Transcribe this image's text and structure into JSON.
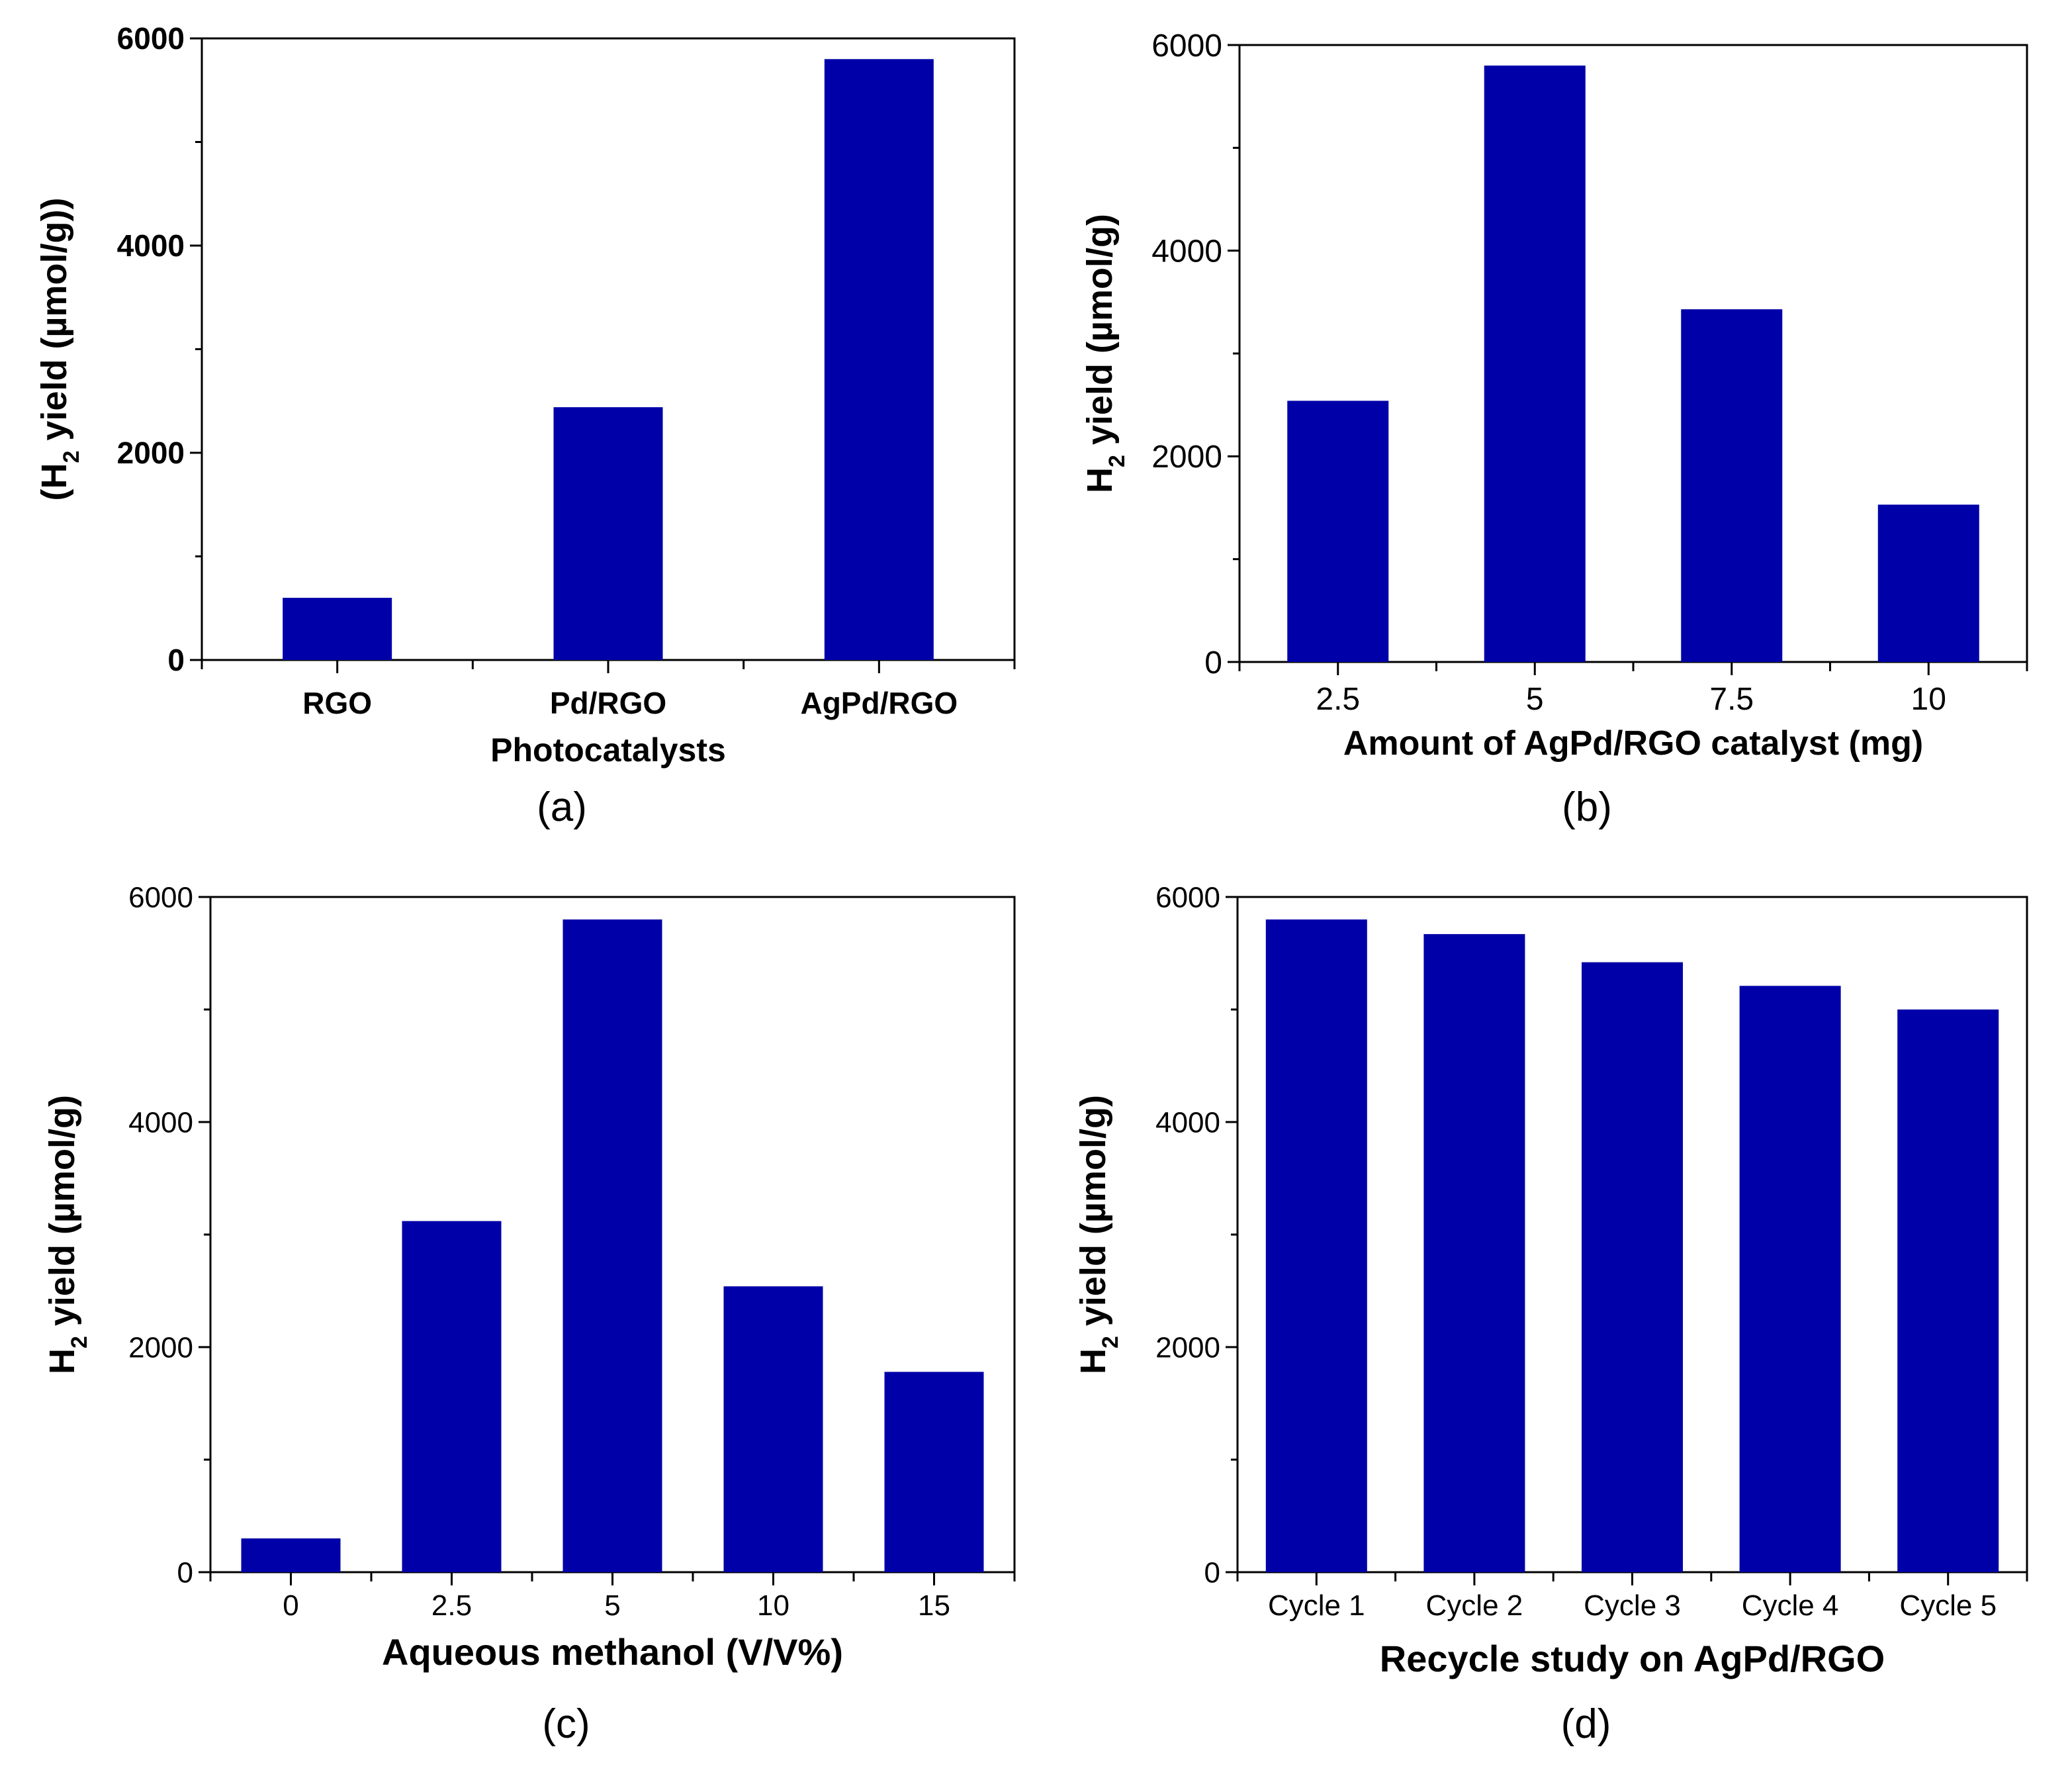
{
  "figure": {
    "panels": [
      "(a)",
      "(b)",
      "(c)",
      "(d)"
    ],
    "bar_color": "#0000A8"
  },
  "chart_data": [
    {
      "id": "a",
      "type": "bar",
      "panel_label": "(a)",
      "categories": [
        "RGO",
        "Pd/RGO",
        "AgPd/RGO"
      ],
      "values": [
        600,
        2440,
        5800
      ],
      "ylim": [
        0,
        6000
      ],
      "yticks": [
        0,
        2000,
        4000,
        6000
      ],
      "ylabel": {
        "prefix": "(H",
        "sub": "2",
        "suffix": " yield (µmol/g))"
      },
      "xlabel": "Photocatalysts",
      "title": "",
      "bold_ticks": true,
      "grid": false
    },
    {
      "id": "b",
      "type": "bar",
      "panel_label": "(b)",
      "categories": [
        "2.5",
        "5",
        "7.5",
        "10"
      ],
      "values": [
        2540,
        5800,
        3430,
        1530
      ],
      "ylim": [
        0,
        6000
      ],
      "yticks": [
        0,
        2000,
        4000,
        6000
      ],
      "ylabel": {
        "prefix": "H",
        "sub": "2",
        "suffix": " yield (µmol/g)"
      },
      "xlabel": "Amount of AgPd/RGO catalyst (mg)",
      "title": "",
      "bold_ticks": false,
      "grid": false
    },
    {
      "id": "c",
      "type": "bar",
      "panel_label": "(c)",
      "categories": [
        "0",
        "2.5",
        "5",
        "10",
        "15"
      ],
      "values": [
        300,
        3120,
        5800,
        2540,
        1780
      ],
      "ylim": [
        0,
        6000
      ],
      "yticks": [
        0,
        2000,
        4000,
        6000
      ],
      "ylabel": {
        "prefix": "H",
        "sub": "2",
        "suffix": " yield (µmol/g)"
      },
      "xlabel": "Aqueous methanol (V/V%)",
      "title": "",
      "bold_ticks": false,
      "grid": false
    },
    {
      "id": "d",
      "type": "bar",
      "panel_label": "(d)",
      "categories": [
        "Cycle 1",
        "Cycle 2",
        "Cycle 3",
        "Cycle 4",
        "Cycle 5"
      ],
      "values": [
        5800,
        5670,
        5420,
        5210,
        5000
      ],
      "ylim": [
        0,
        6000
      ],
      "yticks": [
        0,
        2000,
        4000,
        6000
      ],
      "ylabel": {
        "prefix": "H",
        "sub": "2",
        "suffix": " yield (µmol/g)"
      },
      "xlabel": "Recycle study on AgPd/RGO",
      "title": "",
      "bold_ticks": false,
      "grid": false
    }
  ]
}
